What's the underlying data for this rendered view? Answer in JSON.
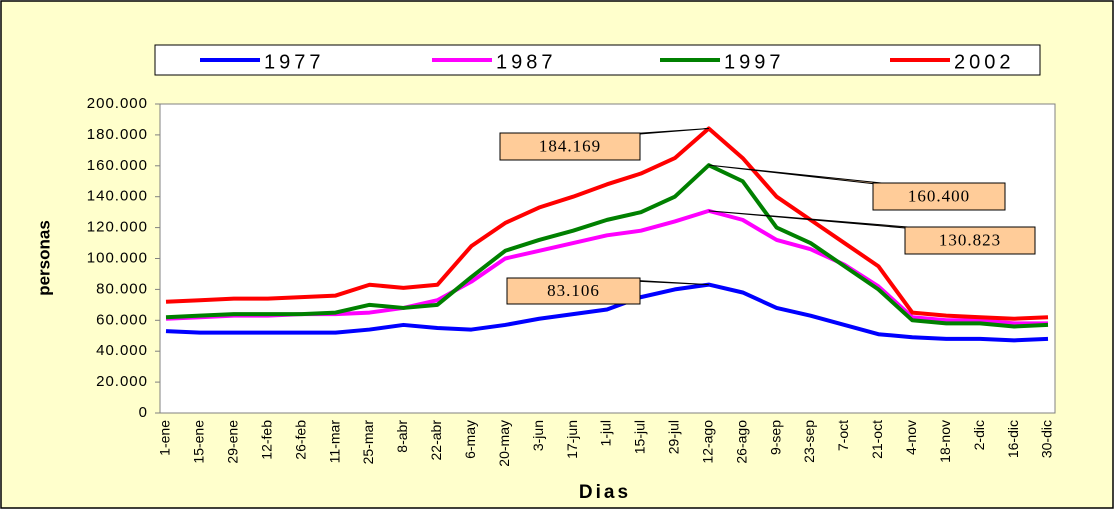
{
  "chart_data": {
    "type": "line",
    "x_label": "Dias",
    "y_label": "personas",
    "categories": [
      "1-ene",
      "15-ene",
      "29-ene",
      "12-feb",
      "26-feb",
      "11-mar",
      "25-mar",
      "8-abr",
      "22-abr",
      "6-may",
      "20-may",
      "3-jun",
      "17-jun",
      "1-jul",
      "15-jul",
      "29-jul",
      "12-ago",
      "26-ago",
      "9-sep",
      "23-sep",
      "7-oct",
      "21-oct",
      "4-nov",
      "18-nov",
      "2-dic",
      "16-dic",
      "30-dic"
    ],
    "series": [
      {
        "name": "1977",
        "color": "#0000ff",
        "values": [
          53000,
          52000,
          52000,
          52000,
          52000,
          52000,
          54000,
          57000,
          55000,
          54000,
          57000,
          61000,
          64000,
          67000,
          75000,
          80000,
          83106,
          78000,
          68000,
          63000,
          57000,
          51000,
          49000,
          48000,
          48000,
          47000,
          48000
        ]
      },
      {
        "name": "1987",
        "color": "#ff00ff",
        "values": [
          61000,
          62000,
          63000,
          63000,
          64000,
          64000,
          65000,
          68000,
          73000,
          85000,
          100000,
          105000,
          110000,
          115000,
          118000,
          124000,
          130823,
          125000,
          112000,
          106000,
          96000,
          82000,
          62000,
          60000,
          60000,
          58000,
          58000
        ]
      },
      {
        "name": "1997",
        "color": "#008000",
        "values": [
          62000,
          63000,
          64000,
          64000,
          64000,
          65000,
          70000,
          68000,
          70000,
          88000,
          105000,
          112000,
          118000,
          125000,
          130000,
          140000,
          160400,
          150000,
          120000,
          110000,
          95000,
          80000,
          60000,
          58000,
          58000,
          56000,
          57000
        ]
      },
      {
        "name": "2002",
        "color": "#ff0000",
        "values": [
          72000,
          73000,
          74000,
          74000,
          75000,
          76000,
          83000,
          81000,
          83000,
          108000,
          123000,
          133000,
          140000,
          148000,
          155000,
          165000,
          184169,
          165000,
          140000,
          125000,
          110000,
          95000,
          65000,
          63000,
          62000,
          61000,
          62000
        ]
      }
    ],
    "annotations": [
      {
        "value": 184169,
        "label": "184.169"
      },
      {
        "value": 160400,
        "label": "160.400"
      },
      {
        "value": 130823,
        "label": "130.823"
      },
      {
        "value": 83106,
        "label": "83.106"
      }
    ],
    "ylim": [
      0,
      200000
    ],
    "yticks": [
      0,
      {
        "value": 20000,
        "label": "20.000"
      },
      {
        "value": 40000,
        "label": "40.000"
      },
      {
        "value": 60000,
        "label": "60.000"
      },
      {
        "value": 80000,
        "label": "80.000"
      },
      {
        "value": 100000,
        "label": "100.000"
      },
      {
        "value": 120000,
        "label": "120.000"
      },
      {
        "value": 140000,
        "label": "140.000"
      },
      {
        "value": 160000,
        "label": "160.000"
      },
      {
        "value": 180000,
        "label": "180.000"
      },
      {
        "value": 200000,
        "label": "200.000"
      }
    ]
  }
}
